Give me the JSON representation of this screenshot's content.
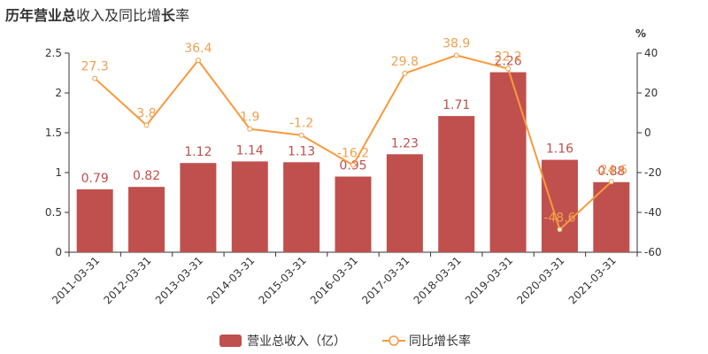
{
  "chart_data": {
    "type": "bar",
    "title_segments": [
      {
        "text": "历年",
        "bold": true
      },
      {
        "text": "营业总",
        "bold": true
      },
      {
        "text": "收入及同比增",
        "bold": false
      },
      {
        "text": "长",
        "bold": true
      },
      {
        "text": "率",
        "bold": false
      }
    ],
    "categories": [
      "2011-03-31",
      "2012-03-31",
      "2013-03-31",
      "2014-03-31",
      "2015-03-31",
      "2016-03-31",
      "2017-03-31",
      "2018-03-31",
      "2019-03-31",
      "2020-03-31",
      "2021-03-31"
    ],
    "series": [
      {
        "name": "营业总收入（亿）",
        "type": "bar",
        "axis": "left",
        "values": [
          0.79,
          0.82,
          1.12,
          1.14,
          1.13,
          0.95,
          1.23,
          1.71,
          2.26,
          1.16,
          0.88
        ],
        "labels": [
          "0.79",
          "0.82",
          "1.12",
          "1.14",
          "1.13",
          "0.95",
          "1.23",
          "1.71",
          "2.26",
          "1.16",
          "0.88"
        ]
      },
      {
        "name": "同比增长率",
        "type": "line",
        "axis": "right",
        "values": [
          27.3,
          3.8,
          36.4,
          1.9,
          -1.2,
          -16.2,
          29.8,
          38.9,
          32.2,
          -48.6,
          -24.6
        ],
        "labels": [
          "27.3",
          "3.8",
          "36.4",
          "1.9",
          "-1.2",
          "-16.2",
          "29.8",
          "38.9",
          "32.2",
          "-48.6",
          "-24.6"
        ]
      }
    ],
    "y_left": {
      "min": 0,
      "max": 2.5,
      "ticks": [
        "0",
        "0.5",
        "1",
        "1.5",
        "2",
        "2.5"
      ]
    },
    "y_right": {
      "min": -60,
      "max": 40,
      "unit": "%",
      "ticks": [
        "-60",
        "-40",
        "-20",
        "0",
        "20",
        "40"
      ]
    },
    "colors": {
      "bar": "#c0504d",
      "bar_label": "#c0504d",
      "line": "#f79a3e",
      "line_label": "#f0a050",
      "axis": "#333333",
      "grid": "#e6e6e6"
    },
    "grid": false,
    "legend_position": "bottom-center"
  }
}
